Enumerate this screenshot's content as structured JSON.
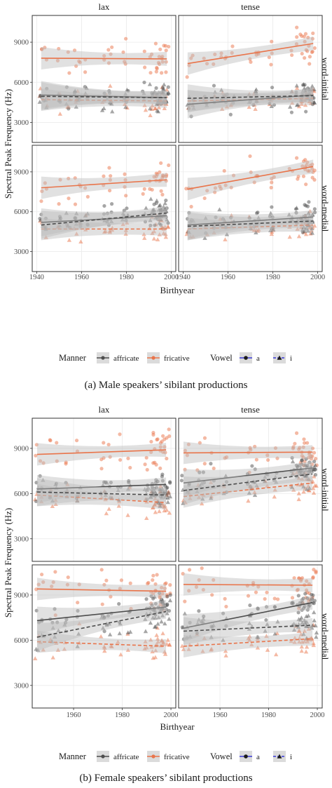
{
  "figures": [
    {
      "caption": "(a) Male speakers’ sibilant productions",
      "xlabel": "Birthyear",
      "ylabel": "Spectral Peak Frequency (Hz)",
      "xlim": [
        1938,
        2002
      ],
      "ylim": [
        1500,
        11000
      ],
      "xticks": [
        1940,
        1960,
        1980,
        2000
      ],
      "yticks": [
        3000,
        6000,
        9000
      ],
      "columns": [
        "lax",
        "tense"
      ],
      "rows": [
        "word-initial",
        "word-medial"
      ]
    },
    {
      "caption": "(b) Female speakers’ sibilant productions",
      "xlabel": "Birthyear",
      "ylabel": "Spectral Peak Frequency (Hz)",
      "xlim": [
        1943,
        2002
      ],
      "ylim": [
        1500,
        11000
      ],
      "xticks": [
        1960,
        1980,
        2000
      ],
      "yticks": [
        3000,
        6000,
        9000
      ],
      "columns": [
        "lax",
        "tense"
      ],
      "rows": [
        "word-initial",
        "word-medial"
      ]
    }
  ],
  "legend": {
    "manner_title": "Manner",
    "manner_items": [
      {
        "label": "affricate",
        "color": "#4d4d4d"
      },
      {
        "label": "fricative",
        "color": "#e9744a"
      }
    ],
    "vowel_title": "Vowel",
    "vowel_items": [
      {
        "label": "a",
        "shape": "circle",
        "line": "solid"
      },
      {
        "label": "i",
        "shape": "triangle",
        "line": "dashed"
      }
    ]
  },
  "colors": {
    "affricate": "#4d4d4d",
    "fricative": "#e9744a",
    "ribbon": "#bdbdbd",
    "panel_border": "#333333",
    "grid": "#ebebeb",
    "strip_bg": "#ffffff"
  },
  "chart_data": [
    {
      "type": "scatter",
      "title": "(a) Male speakers’ sibilant productions",
      "xlabel": "Birthyear",
      "ylabel": "Spectral Peak Frequency (Hz)",
      "xlim": [
        1938,
        2002
      ],
      "ylim": [
        1500,
        11000
      ],
      "panels": [
        {
          "column": "lax",
          "row": "word-initial",
          "fits": [
            {
              "manner": "fricative",
              "vowel": "a",
              "x": [
                1942,
                1998
              ],
              "y": [
                7800,
                7750
              ]
            },
            {
              "manner": "fricative",
              "vowel": "i",
              "x": [
                1942,
                1998
              ],
              "y": [
                4700,
                4600
              ]
            },
            {
              "manner": "affricate",
              "vowel": "a",
              "x": [
                1942,
                1998
              ],
              "y": [
                5050,
                4850
              ]
            },
            {
              "manner": "affricate",
              "vowel": "i",
              "x": [
                1942,
                1998
              ],
              "y": [
                4950,
                4850
              ]
            }
          ]
        },
        {
          "column": "tense",
          "row": "word-initial",
          "fits": [
            {
              "manner": "fricative",
              "vowel": "a",
              "x": [
                1942,
                1998
              ],
              "y": [
                7400,
                8900
              ]
            },
            {
              "manner": "fricative",
              "vowel": "i",
              "x": [
                1942,
                1998
              ],
              "y": [
                4600,
                4800
              ]
            },
            {
              "manner": "affricate",
              "vowel": "a",
              "x": [
                1942,
                1998
              ],
              "y": [
                4350,
                5050
              ]
            },
            {
              "manner": "affricate",
              "vowel": "i",
              "x": [
                1942,
                1998
              ],
              "y": [
                4800,
                5000
              ]
            }
          ]
        },
        {
          "column": "lax",
          "row": "word-medial",
          "fits": [
            {
              "manner": "fricative",
              "vowel": "a",
              "x": [
                1942,
                1998
              ],
              "y": [
                7800,
                8400
              ]
            },
            {
              "manner": "fricative",
              "vowel": "i",
              "x": [
                1942,
                1998
              ],
              "y": [
                4700,
                4700
              ]
            },
            {
              "manner": "affricate",
              "vowel": "a",
              "x": [
                1942,
                1998
              ],
              "y": [
                5200,
                5700
              ]
            },
            {
              "manner": "affricate",
              "vowel": "i",
              "x": [
                1942,
                1998
              ],
              "y": [
                5000,
                5900
              ]
            }
          ]
        },
        {
          "column": "tense",
          "row": "word-medial",
          "fits": [
            {
              "manner": "fricative",
              "vowel": "a",
              "x": [
                1942,
                1998
              ],
              "y": [
                7700,
                9400
              ]
            },
            {
              "manner": "fricative",
              "vowel": "i",
              "x": [
                1942,
                1998
              ],
              "y": [
                4700,
                5000
              ]
            },
            {
              "manner": "affricate",
              "vowel": "a",
              "x": [
                1942,
                1998
              ],
              "y": [
                5000,
                5600
              ]
            },
            {
              "manner": "affricate",
              "vowel": "i",
              "x": [
                1942,
                1998
              ],
              "y": [
                4900,
                5300
              ]
            }
          ]
        }
      ]
    },
    {
      "type": "scatter",
      "title": "(b) Female speakers’ sibilant productions",
      "xlabel": "Birthyear",
      "ylabel": "Spectral Peak Frequency (Hz)",
      "xlim": [
        1943,
        2002
      ],
      "ylim": [
        1500,
        11000
      ],
      "panels": [
        {
          "column": "lax",
          "row": "word-initial",
          "fits": [
            {
              "manner": "fricative",
              "vowel": "a",
              "x": [
                1945,
                1998
              ],
              "y": [
                8600,
                8900
              ]
            },
            {
              "manner": "fricative",
              "vowel": "i",
              "x": [
                1945,
                1998
              ],
              "y": [
                5900,
                5400
              ]
            },
            {
              "manner": "affricate",
              "vowel": "a",
              "x": [
                1945,
                1998
              ],
              "y": [
                6300,
                6600
              ]
            },
            {
              "manner": "affricate",
              "vowel": "i",
              "x": [
                1945,
                1998
              ],
              "y": [
                6100,
                5900
              ]
            }
          ]
        },
        {
          "column": "tense",
          "row": "word-initial",
          "fits": [
            {
              "manner": "fricative",
              "vowel": "a",
              "x": [
                1945,
                1998
              ],
              "y": [
                8700,
                8750
              ]
            },
            {
              "manner": "fricative",
              "vowel": "i",
              "x": [
                1945,
                1998
              ],
              "y": [
                5800,
                6700
              ]
            },
            {
              "manner": "affricate",
              "vowel": "a",
              "x": [
                1945,
                1998
              ],
              "y": [
                6700,
                7700
              ]
            },
            {
              "manner": "affricate",
              "vowel": "i",
              "x": [
                1945,
                1998
              ],
              "y": [
                6200,
                7300
              ]
            }
          ]
        },
        {
          "column": "lax",
          "row": "word-medial",
          "fits": [
            {
              "manner": "fricative",
              "vowel": "a",
              "x": [
                1945,
                1998
              ],
              "y": [
                9400,
                9250
              ]
            },
            {
              "manner": "fricative",
              "vowel": "i",
              "x": [
                1945,
                1998
              ],
              "y": [
                5900,
                5600
              ]
            },
            {
              "manner": "affricate",
              "vowel": "a",
              "x": [
                1945,
                1998
              ],
              "y": [
                7300,
                8200
              ]
            },
            {
              "manner": "affricate",
              "vowel": "i",
              "x": [
                1945,
                1998
              ],
              "y": [
                6200,
                7900
              ]
            }
          ]
        },
        {
          "column": "tense",
          "row": "word-medial",
          "fits": [
            {
              "manner": "fricative",
              "vowel": "a",
              "x": [
                1945,
                1998
              ],
              "y": [
                9700,
                9650
              ]
            },
            {
              "manner": "fricative",
              "vowel": "i",
              "x": [
                1945,
                1998
              ],
              "y": [
                5600,
                6100
              ]
            },
            {
              "manner": "affricate",
              "vowel": "a",
              "x": [
                1945,
                1998
              ],
              "y": [
                6800,
                8500
              ]
            },
            {
              "manner": "affricate",
              "vowel": "i",
              "x": [
                1945,
                1998
              ],
              "y": [
                6600,
                7000
              ]
            }
          ]
        }
      ]
    }
  ]
}
